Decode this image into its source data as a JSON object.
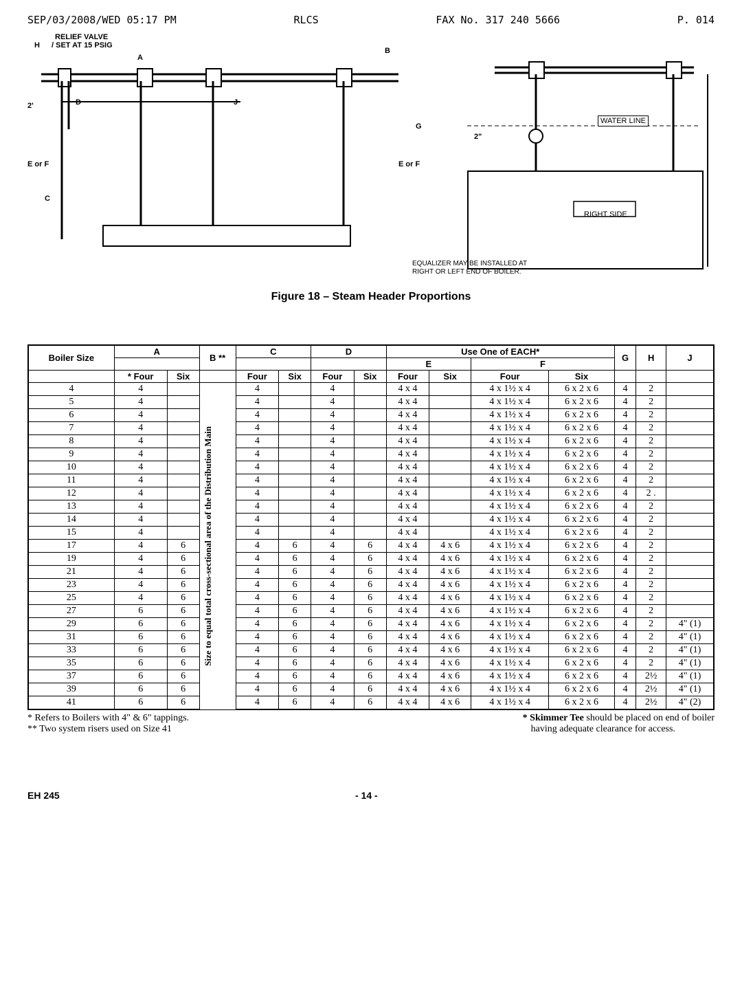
{
  "fax": {
    "datetime": "SEP/03/2008/WED 05:17 PM",
    "sender": "RLCS",
    "faxno": "FAX No. 317 240 5666",
    "page": "P. 014"
  },
  "diagram": {
    "relief_valve": "RELIEF VALVE",
    "set_at": "SET AT 15 PSIG",
    "water_line": "WATER LINE",
    "right_side": "RIGHT SIDE",
    "equalizer_note1": "EQUALIZER MAY BE INSTALLED AT",
    "equalizer_note2": "RIGHT OR LEFT END OF BOILER.",
    "H": "H",
    "A": "A",
    "B": "B",
    "D": "D",
    "J": "J",
    "C": "C",
    "G": "G",
    "EorF1": "E or F",
    "EorF2": "E or F",
    "two": "2'",
    "two_in": "2\""
  },
  "caption": "Figure 18 – Steam Header Proportions",
  "table": {
    "use_one": "Use One of EACH*",
    "headers": {
      "boiler": "Boiler Size",
      "A": "A",
      "B": "B **",
      "C": "C",
      "D": "D",
      "E": "E",
      "F": "F",
      "G": "G",
      "H": "H",
      "J": "J",
      "four": "Four",
      "six": "Six",
      "star_four": "* Four"
    },
    "b_note": "Size to equal total cross-sectional area of the Distribution Main",
    "rows": [
      {
        "size": "4",
        "a4": "4",
        "a6": "",
        "c4": "4",
        "c6": "",
        "d4": "4",
        "d6": "",
        "e4": "4 x 4",
        "e6": "",
        "f4": "4 x 1½ x 4",
        "f6": "6 x 2 x 6",
        "g": "4",
        "h": "2",
        "j": ""
      },
      {
        "size": "5",
        "a4": "4",
        "a6": "",
        "c4": "4",
        "c6": "",
        "d4": "4",
        "d6": "",
        "e4": "4 x 4",
        "e6": "",
        "f4": "4 x 1½ x 4",
        "f6": "6 x 2 x 6",
        "g": "4",
        "h": "2",
        "j": ""
      },
      {
        "size": "6",
        "a4": "4",
        "a6": "",
        "c4": "4",
        "c6": "",
        "d4": "4",
        "d6": "",
        "e4": "4 x 4",
        "e6": "",
        "f4": "4 x 1½ x 4",
        "f6": "6 x 2 x 6",
        "g": "4",
        "h": "2",
        "j": ""
      },
      {
        "size": "7",
        "a4": "4",
        "a6": "",
        "c4": "4",
        "c6": "",
        "d4": "4",
        "d6": "",
        "e4": "4 x 4",
        "e6": "",
        "f4": "4 x 1½ x 4",
        "f6": "6 x 2 x 6",
        "g": "4",
        "h": "2",
        "j": ""
      },
      {
        "size": "8",
        "a4": "4",
        "a6": "",
        "c4": "4",
        "c6": "",
        "d4": "4",
        "d6": "",
        "e4": "4 x 4",
        "e6": "",
        "f4": "4 x 1½ x 4",
        "f6": "6 x 2 x 6",
        "g": "4",
        "h": "2",
        "j": ""
      },
      {
        "size": "9",
        "a4": "4",
        "a6": "",
        "c4": "4",
        "c6": "",
        "d4": "4",
        "d6": "",
        "e4": "4 x 4",
        "e6": "",
        "f4": "4 x 1½ x 4",
        "f6": "6 x 2 x 6",
        "g": "4",
        "h": "2",
        "j": ""
      },
      {
        "size": "10",
        "a4": "4",
        "a6": "",
        "c4": "4",
        "c6": "",
        "d4": "4",
        "d6": "",
        "e4": "4 x 4",
        "e6": "",
        "f4": "4 x 1½ x 4",
        "f6": "6 x 2 x 6",
        "g": "4",
        "h": "2",
        "j": ""
      },
      {
        "size": "11",
        "a4": "4",
        "a6": "",
        "c4": "4",
        "c6": "",
        "d4": "4",
        "d6": "",
        "e4": "4 x 4",
        "e6": "",
        "f4": "4 x 1½ x 4",
        "f6": "6 x 2 x 6",
        "g": "4",
        "h": "2",
        "j": ""
      },
      {
        "size": "12",
        "a4": "4",
        "a6": "",
        "c4": "4",
        "c6": "",
        "d4": "4",
        "d6": "",
        "e4": "4 x 4",
        "e6": "",
        "f4": "4 x 1½ x 4",
        "f6": "6 x 2 x 6",
        "g": "4",
        "h": "2 .",
        "j": ""
      },
      {
        "size": "13",
        "a4": "4",
        "a6": "",
        "c4": "4",
        "c6": "",
        "d4": "4",
        "d6": "",
        "e4": "4 x 4",
        "e6": "",
        "f4": "4 x 1½ x 4",
        "f6": "6 x 2 x 6",
        "g": "4",
        "h": "2",
        "j": ""
      },
      {
        "size": "14",
        "a4": "4",
        "a6": "",
        "c4": "4",
        "c6": "",
        "d4": "4",
        "d6": "",
        "e4": "4 x 4",
        "e6": "",
        "f4": "4 x 1½ x 4",
        "f6": "6 x 2 x 6",
        "g": "4",
        "h": "2",
        "j": ""
      },
      {
        "size": "15",
        "a4": "4",
        "a6": "",
        "c4": "4",
        "c6": "",
        "d4": "4",
        "d6": "",
        "e4": "4 x 4",
        "e6": "",
        "f4": "4 x 1½ x 4",
        "f6": "6 x 2 x 6",
        "g": "4",
        "h": "2",
        "j": ""
      },
      {
        "size": "17",
        "a4": "4",
        "a6": "6",
        "c4": "4",
        "c6": "6",
        "d4": "4",
        "d6": "6",
        "e4": "4 x 4",
        "e6": "4 x 6",
        "f4": "4 x 1½ x 4",
        "f6": "6 x 2 x 6",
        "g": "4",
        "h": "2",
        "j": ""
      },
      {
        "size": "19",
        "a4": "4",
        "a6": "6",
        "c4": "4",
        "c6": "6",
        "d4": "4",
        "d6": "6",
        "e4": "4 x 4",
        "e6": "4 x 6",
        "f4": "4 x 1½ x 4",
        "f6": "6 x 2 x 6",
        "g": "4",
        "h": "2",
        "j": ""
      },
      {
        "size": "21",
        "a4": "4",
        "a6": "6",
        "c4": "4",
        "c6": "6",
        "d4": "4",
        "d6": "6",
        "e4": "4 x 4",
        "e6": "4 x 6",
        "f4": "4 x 1½ x 4",
        "f6": "6 x 2 x 6",
        "g": "4",
        "h": "2",
        "j": ""
      },
      {
        "size": "23",
        "a4": "4",
        "a6": "6",
        "c4": "4",
        "c6": "6",
        "d4": "4",
        "d6": "6",
        "e4": "4 x 4",
        "e6": "4 x 6",
        "f4": "4 x 1½ x 4",
        "f6": "6 x 2 x 6",
        "g": "4",
        "h": "2",
        "j": ""
      },
      {
        "size": "25",
        "a4": "4",
        "a6": "6",
        "c4": "4",
        "c6": "6",
        "d4": "4",
        "d6": "6",
        "e4": "4 x 4",
        "e6": "4 x 6",
        "f4": "4 x 1½ x 4",
        "f6": "6 x 2 x 6",
        "g": "4",
        "h": "2",
        "j": ""
      },
      {
        "size": "27",
        "a4": "6",
        "a6": "6",
        "c4": "4",
        "c6": "6",
        "d4": "4",
        "d6": "6",
        "e4": "4 x 4",
        "e6": "4 x 6",
        "f4": "4 x 1½ x 4",
        "f6": "6 x 2 x 6",
        "g": "4",
        "h": "2",
        "j": ""
      },
      {
        "size": "29",
        "a4": "6",
        "a6": "6",
        "c4": "4",
        "c6": "6",
        "d4": "4",
        "d6": "6",
        "e4": "4 x 4",
        "e6": "4 x 6",
        "f4": "4 x 1½ x 4",
        "f6": "6 x 2 x 6",
        "g": "4",
        "h": "2",
        "j": "4\" (1)"
      },
      {
        "size": "31",
        "a4": "6",
        "a6": "6",
        "c4": "4",
        "c6": "6",
        "d4": "4",
        "d6": "6",
        "e4": "4 x 4",
        "e6": "4 x 6",
        "f4": "4 x 1½ x 4",
        "f6": "6 x 2 x 6",
        "g": "4",
        "h": "2",
        "j": "4\" (1)"
      },
      {
        "size": "33",
        "a4": "6",
        "a6": "6",
        "c4": "4",
        "c6": "6",
        "d4": "4",
        "d6": "6",
        "e4": "4 x 4",
        "e6": "4 x 6",
        "f4": "4 x 1½ x 4",
        "f6": "6 x 2 x 6",
        "g": "4",
        "h": "2",
        "j": "4\" (1)"
      },
      {
        "size": "35",
        "a4": "6",
        "a6": "6",
        "c4": "4",
        "c6": "6",
        "d4": "4",
        "d6": "6",
        "e4": "4 x 4",
        "e6": "4 x 6",
        "f4": "4 x 1½ x 4",
        "f6": "6 x 2 x 6",
        "g": "4",
        "h": "2",
        "j": "4\" (1)"
      },
      {
        "size": "37",
        "a4": "6",
        "a6": "6",
        "c4": "4",
        "c6": "6",
        "d4": "4",
        "d6": "6",
        "e4": "4 x 4",
        "e6": "4 x 6",
        "f4": "4 x 1½ x 4",
        "f6": "6 x 2 x 6",
        "g": "4",
        "h": "2½",
        "j": "4\" (1)"
      },
      {
        "size": "39",
        "a4": "6",
        "a6": "6",
        "c4": "4",
        "c6": "6",
        "d4": "4",
        "d6": "6",
        "e4": "4 x 4",
        "e6": "4 x 6",
        "f4": "4 x 1½ x 4",
        "f6": "6 x 2 x 6",
        "g": "4",
        "h": "2½",
        "j": "4\" (1)"
      },
      {
        "size": "41",
        "a4": "6",
        "a6": "6",
        "c4": "4",
        "c6": "6",
        "d4": "4",
        "d6": "6",
        "e4": "4 x 4",
        "e6": "4 x 6",
        "f4": "4 x 1½ x 4",
        "f6": "6 x 2 x 6",
        "g": "4",
        "h": "2½",
        "j": "4\" (2)"
      }
    ]
  },
  "footnotes": {
    "left1": "* Refers to Boilers with 4\" & 6\" tappings.",
    "left2": "** Two system risers used on Size 41",
    "right1": "* Skimmer Tee should be placed on end of boiler",
    "right2": "having adequate clearance for access."
  },
  "footer": {
    "model": "EH 245",
    "page": "- 14 -"
  }
}
